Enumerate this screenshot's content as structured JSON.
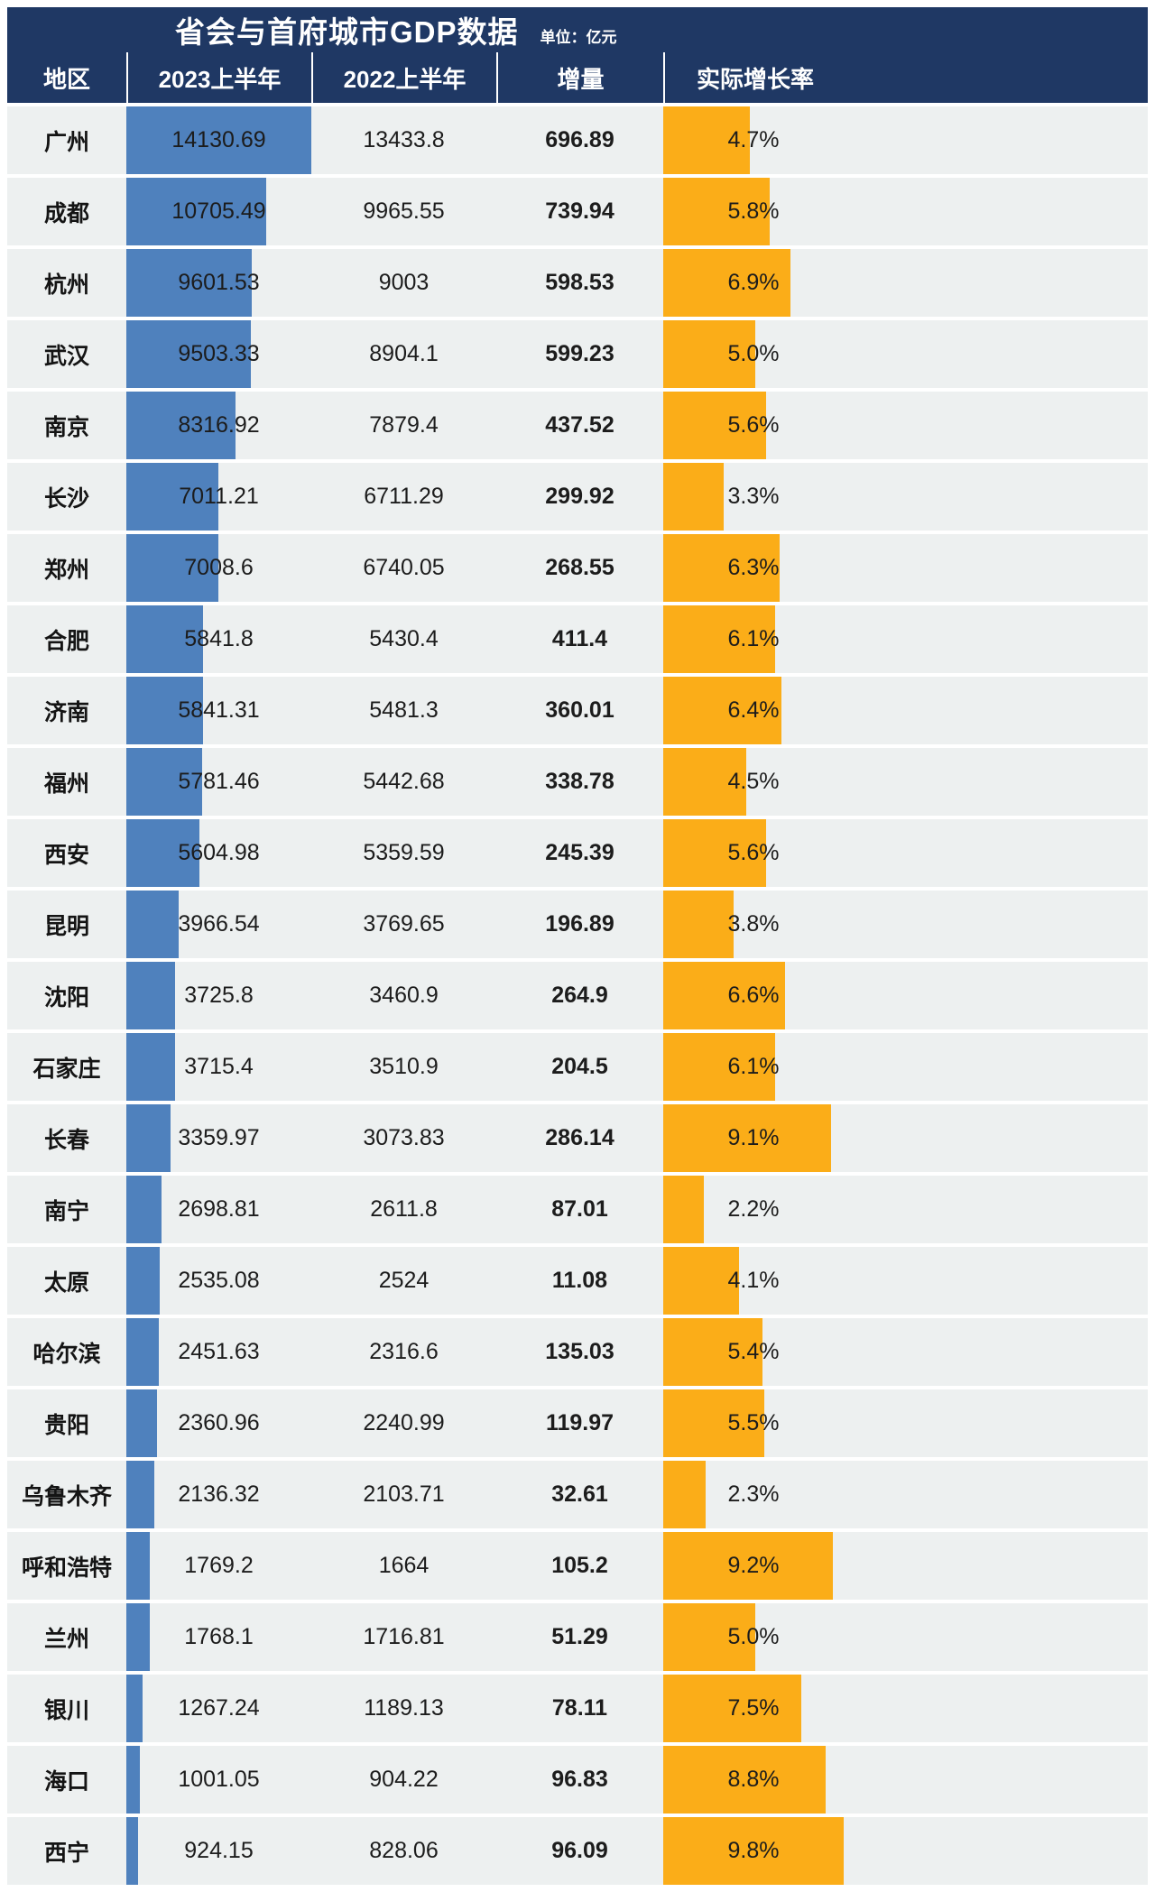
{
  "chart_data": {
    "type": "table",
    "title": "省会与首府城市GDP数据",
    "unit_label": "单位：亿元",
    "columns": [
      "地区",
      "2023上半年",
      "2022上半年",
      "增量",
      "实际增长率"
    ],
    "bar_columns": [
      "gdp_2023_h1",
      "real_growth_rate"
    ],
    "rows": [
      {
        "city": "广州",
        "gdp_2023_h1": "14130.69",
        "gdp_2022_h1": "13433.8",
        "increment": "696.89",
        "real_growth_rate": "4.7%"
      },
      {
        "city": "成都",
        "gdp_2023_h1": "10705.49",
        "gdp_2022_h1": "9965.55",
        "increment": "739.94",
        "real_growth_rate": "5.8%"
      },
      {
        "city": "杭州",
        "gdp_2023_h1": "9601.53",
        "gdp_2022_h1": "9003",
        "increment": "598.53",
        "real_growth_rate": "6.9%"
      },
      {
        "city": "武汉",
        "gdp_2023_h1": "9503.33",
        "gdp_2022_h1": "8904.1",
        "increment": "599.23",
        "real_growth_rate": "5.0%"
      },
      {
        "city": "南京",
        "gdp_2023_h1": "8316.92",
        "gdp_2022_h1": "7879.4",
        "increment": "437.52",
        "real_growth_rate": "5.6%"
      },
      {
        "city": "长沙",
        "gdp_2023_h1": "7011.21",
        "gdp_2022_h1": "6711.29",
        "increment": "299.92",
        "real_growth_rate": "3.3%"
      },
      {
        "city": "郑州",
        "gdp_2023_h1": "7008.6",
        "gdp_2022_h1": "6740.05",
        "increment": "268.55",
        "real_growth_rate": "6.3%"
      },
      {
        "city": "合肥",
        "gdp_2023_h1": "5841.8",
        "gdp_2022_h1": "5430.4",
        "increment": "411.4",
        "real_growth_rate": "6.1%"
      },
      {
        "city": "济南",
        "gdp_2023_h1": "5841.31",
        "gdp_2022_h1": "5481.3",
        "increment": "360.01",
        "real_growth_rate": "6.4%"
      },
      {
        "city": "福州",
        "gdp_2023_h1": "5781.46",
        "gdp_2022_h1": "5442.68",
        "increment": "338.78",
        "real_growth_rate": "4.5%"
      },
      {
        "city": "西安",
        "gdp_2023_h1": "5604.98",
        "gdp_2022_h1": "5359.59",
        "increment": "245.39",
        "real_growth_rate": "5.6%"
      },
      {
        "city": "昆明",
        "gdp_2023_h1": "3966.54",
        "gdp_2022_h1": "3769.65",
        "increment": "196.89",
        "real_growth_rate": "3.8%"
      },
      {
        "city": "沈阳",
        "gdp_2023_h1": "3725.8",
        "gdp_2022_h1": "3460.9",
        "increment": "264.9",
        "real_growth_rate": "6.6%"
      },
      {
        "city": "石家庄",
        "gdp_2023_h1": "3715.4",
        "gdp_2022_h1": "3510.9",
        "increment": "204.5",
        "real_growth_rate": "6.1%"
      },
      {
        "city": "长春",
        "gdp_2023_h1": "3359.97",
        "gdp_2022_h1": "3073.83",
        "increment": "286.14",
        "real_growth_rate": "9.1%"
      },
      {
        "city": "南宁",
        "gdp_2023_h1": "2698.81",
        "gdp_2022_h1": "2611.8",
        "increment": "87.01",
        "real_growth_rate": "2.2%"
      },
      {
        "city": "太原",
        "gdp_2023_h1": "2535.08",
        "gdp_2022_h1": "2524",
        "increment": "11.08",
        "real_growth_rate": "4.1%"
      },
      {
        "city": "哈尔滨",
        "gdp_2023_h1": "2451.63",
        "gdp_2022_h1": "2316.6",
        "increment": "135.03",
        "real_growth_rate": "5.4%"
      },
      {
        "city": "贵阳",
        "gdp_2023_h1": "2360.96",
        "gdp_2022_h1": "2240.99",
        "increment": "119.97",
        "real_growth_rate": "5.5%"
      },
      {
        "city": "乌鲁木齐",
        "gdp_2023_h1": "2136.32",
        "gdp_2022_h1": "2103.71",
        "increment": "32.61",
        "real_growth_rate": "2.3%"
      },
      {
        "city": "呼和浩特",
        "gdp_2023_h1": "1769.2",
        "gdp_2022_h1": "1664",
        "increment": "105.2",
        "real_growth_rate": "9.2%"
      },
      {
        "city": "兰州",
        "gdp_2023_h1": "1768.1",
        "gdp_2022_h1": "1716.81",
        "increment": "51.29",
        "real_growth_rate": "5.0%"
      },
      {
        "city": "银川",
        "gdp_2023_h1": "1267.24",
        "gdp_2022_h1": "1189.13",
        "increment": "78.11",
        "real_growth_rate": "7.5%"
      },
      {
        "city": "海口",
        "gdp_2023_h1": "1001.05",
        "gdp_2022_h1": "904.22",
        "increment": "96.83",
        "real_growth_rate": "8.8%"
      },
      {
        "city": "西宁",
        "gdp_2023_h1": "924.15",
        "gdp_2022_h1": "828.06",
        "increment": "96.09",
        "real_growth_rate": "9.8%"
      }
    ],
    "colors": {
      "header_bg": "#1F3864",
      "row_bg": "#EDF0F0",
      "bar_2023": "#4F81BD",
      "bar_rate": "#FBAD18"
    }
  }
}
